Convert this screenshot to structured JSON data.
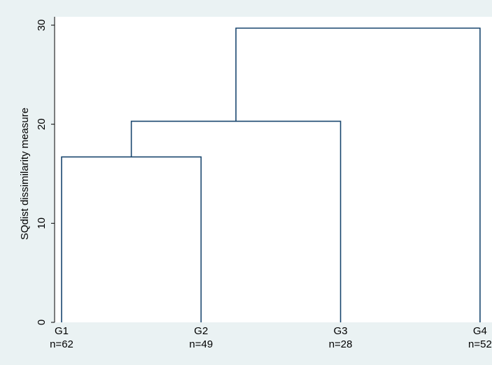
{
  "chart_data": {
    "type": "dendrogram",
    "ylabel": "SQdist dissimilarity measure",
    "ylim": [
      0,
      30
    ],
    "yticks": [
      0,
      10,
      20,
      30
    ],
    "leaves": [
      {
        "name": "G1",
        "n_label": "n=62"
      },
      {
        "name": "G2",
        "n_label": "n=49"
      },
      {
        "name": "G3",
        "n_label": "n=28"
      },
      {
        "name": "G4",
        "n_label": "n=52"
      }
    ],
    "merges": [
      {
        "left": "G1",
        "right": "G2",
        "height": 16.7
      },
      {
        "left": "G1+G2",
        "right": "G3",
        "height": 20.3
      },
      {
        "left": "G1+G2+G3",
        "right": "G4",
        "height": 29.7
      }
    ],
    "colors": {
      "background": "#eaf2f3",
      "plot_background": "#ffffff",
      "line": "#1a476f",
      "axis": "#000000"
    }
  }
}
